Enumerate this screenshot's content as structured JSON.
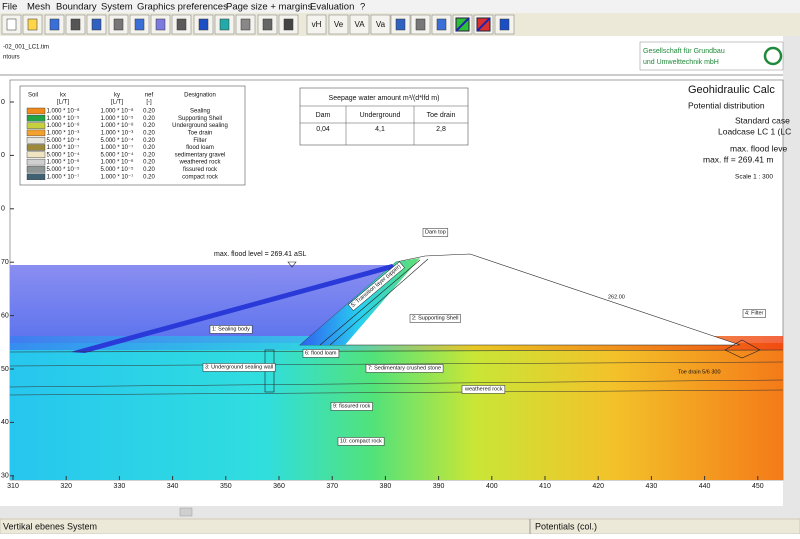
{
  "menu": [
    "File",
    "Mesh",
    "Boundary",
    "System",
    "Graphics preferences",
    "Page size + margins",
    "Evaluation",
    "?"
  ],
  "toolbar": {
    "buttons": [
      "vH",
      "Ve",
      "VA",
      "Va"
    ]
  },
  "document": {
    "file_name": "-02_001_LC1.tim",
    "view": "ntours",
    "company": [
      "Gesellschaft für Grundbau",
      "und Umwelttechnik mbH"
    ],
    "title": "Geohidraulic Calc",
    "subtitle": "Potential distribution",
    "case": "Standard case",
    "loadcase": "Loadcase LC 1  (LC",
    "flood_level": [
      "max. flood leve",
      "max. ff = 269.41 m"
    ],
    "scale": "Scale 1 : 300"
  },
  "legend": {
    "headers": [
      "Soil",
      "kx",
      "ky",
      "nef",
      "Designation"
    ],
    "units": [
      "[L/T]",
      "[L/T]",
      "[-]"
    ],
    "rows": [
      [
        "1.000 * 10⁻⁸",
        "1.000 * 10⁻⁸",
        "0.20",
        "Sealing"
      ],
      [
        "1.000 * 10⁻⁵",
        "1.000 * 10⁻⁵",
        "0.20",
        "Supporting Shell"
      ],
      [
        "1.000 * 10⁻⁸",
        "1.000 * 10⁻⁸",
        "0.20",
        "Underground sealing"
      ],
      [
        "1.000 * 10⁻³",
        "1.000 * 10⁻³",
        "0.20",
        "Toe drain"
      ],
      [
        "5.000 * 10⁻⁴",
        "5.000 * 10⁻⁴",
        "0.20",
        "Filter"
      ],
      [
        "1.000 * 10⁻⁷",
        "1.000 * 10⁻⁷",
        "0.20",
        "flood loam"
      ],
      [
        "5.000 * 10⁻⁴",
        "5.000 * 10⁻⁴",
        "0.20",
        "sedimentary gravel"
      ],
      [
        "1.000 * 10⁻⁶",
        "1.000 * 10⁻⁶",
        "0.20",
        "weathered rock"
      ],
      [
        "5.000 * 10⁻⁵",
        "5.000 * 10⁻⁵",
        "0.20",
        "fissured rock"
      ],
      [
        "1.000 * 10⁻⁷",
        "1.000 * 10⁻⁷",
        "0.20",
        "compact rock"
      ]
    ]
  },
  "seepage_table": {
    "title": "Seepage  water amount m³/(d*lfd m)",
    "headers": [
      "Dam",
      "Underground",
      "Toe drain"
    ],
    "values": [
      "0,04",
      "4,1",
      "2,8"
    ]
  },
  "plot": {
    "y_labels": [
      "0",
      "0",
      "0",
      "70",
      "60",
      "50",
      "40",
      "30"
    ],
    "x_labels": [
      "310",
      "320",
      "330",
      "340",
      "350",
      "360",
      "370",
      "380",
      "390",
      "400",
      "410",
      "420",
      "430",
      "440",
      "450"
    ],
    "annotations": [
      "max. flood level = 269.41 aSL",
      "Dam top",
      "1: Sealing body",
      "2: Supporting Shell",
      "3: Underground sealing wall",
      "4: Filter",
      "5: Transition layer (upper)",
      "6: flood loam",
      "7: Sedimentary crushed stone",
      "weathered rock",
      "9: fissured rock",
      "10: compact rock",
      "Toe drain 5/6 300",
      "262.00"
    ]
  },
  "status_bar": [
    "Vertikal ebenes System",
    "Potentials (col.)"
  ]
}
